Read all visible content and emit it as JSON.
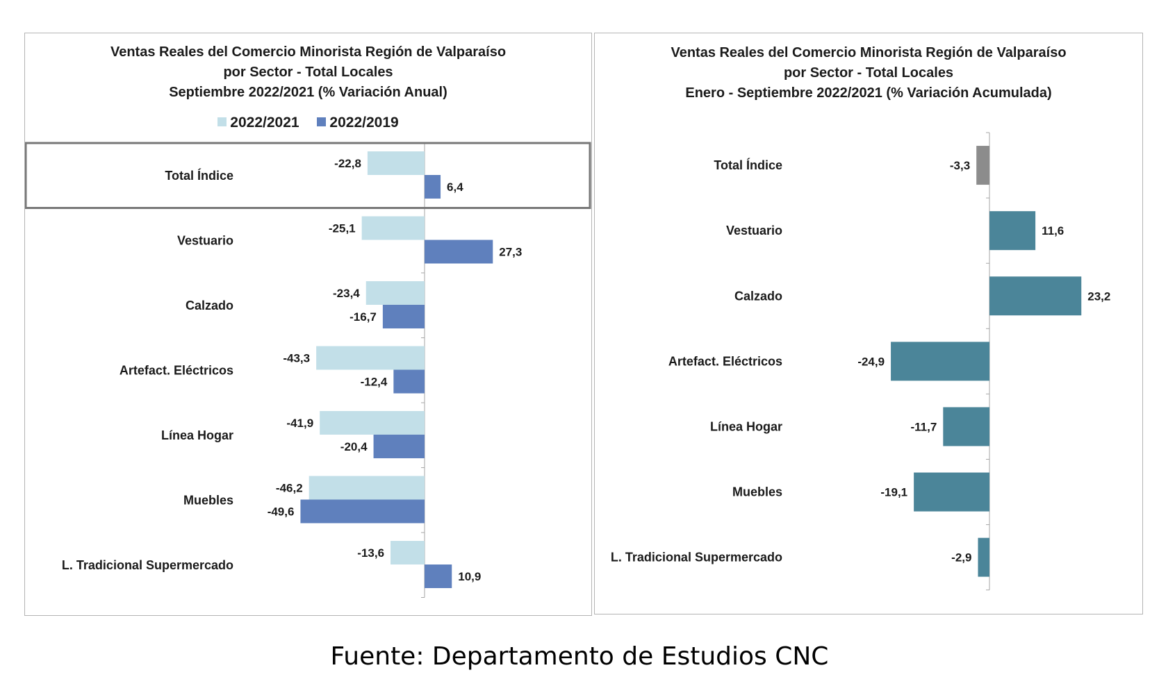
{
  "chart_data": [
    {
      "type": "bar",
      "orientation": "horizontal",
      "title": [
        "Ventas Reales del Comercio Minorista Región de Valparaíso",
        "por Sector - Total Locales",
        "Septiembre 2022/2021 (% Variación Anual)"
      ],
      "categories": [
        "Total Índice",
        "Vestuario",
        "Calzado",
        "Artefact. Eléctricos",
        "Línea Hogar",
        "Muebles",
        "L. Tradicional Supermercado"
      ],
      "series": [
        {
          "name": "2022/2021",
          "color": "#c2dfe8",
          "values": [
            -22.8,
            -25.1,
            -23.4,
            -43.3,
            -41.9,
            -46.2,
            -13.6
          ],
          "labels": [
            "-22,8",
            "-25,1",
            "-23,4",
            "-43,3",
            "-41,9",
            "-46,2",
            "-13,6"
          ]
        },
        {
          "name": "2022/2019",
          "color": "#5f80bd",
          "values": [
            6.4,
            27.3,
            -16.7,
            -12.4,
            -20.4,
            -49.6,
            10.9
          ],
          "labels": [
            "6,4",
            "27,3",
            "-16,7",
            "-12,4",
            "-20,4",
            "-49,6",
            "10,9"
          ]
        }
      ],
      "legend": "top",
      "highlighted_category": "Total Índice"
    },
    {
      "type": "bar",
      "orientation": "horizontal",
      "title": [
        "Ventas Reales del Comercio Minorista Región de Valparaíso",
        "por Sector  - Total Locales",
        "Enero - Septiembre 2022/2021 (% Variación Acumulada)"
      ],
      "categories": [
        "Total Índice",
        "Vestuario",
        "Calzado",
        "Artefact. Eléctricos",
        "Línea Hogar",
        "Muebles",
        "L. Tradicional Supermercado"
      ],
      "series": [
        {
          "values": [
            -3.3,
            11.6,
            23.2,
            -24.9,
            -11.7,
            -19.1,
            -2.9
          ],
          "labels": [
            "-3,3",
            "11,6",
            "23,2",
            "-24,9",
            "-11,7",
            "-19,1",
            "-2,9"
          ],
          "color": "#4b8599",
          "total_color": "#8c8c8c"
        }
      ]
    }
  ],
  "source": "Fuente: Departamento de Estudios CNC"
}
